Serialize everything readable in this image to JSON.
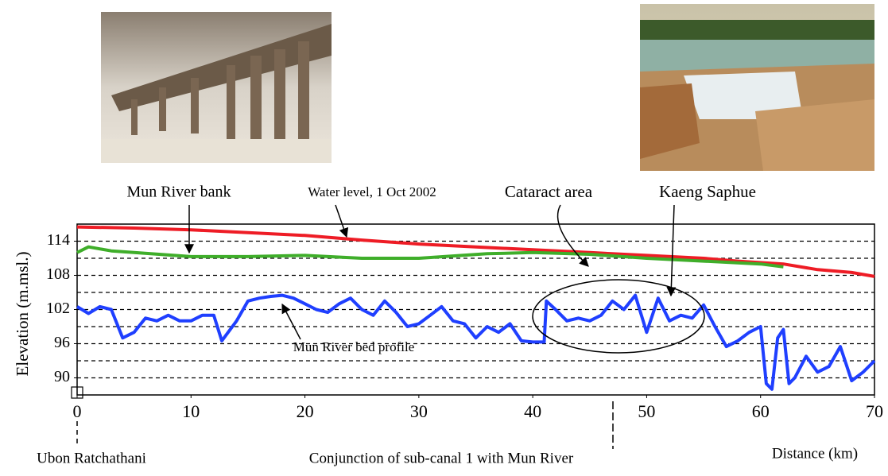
{
  "chart_data": {
    "type": "line",
    "ylabel": "Elevation (m.msl.)",
    "xlabel": "Distance (km)",
    "xlim": [
      0,
      70
    ],
    "xticks": [
      0,
      10,
      20,
      30,
      40,
      50,
      60,
      70
    ],
    "ylim": [
      87,
      117
    ],
    "yticks": [
      90,
      96,
      102,
      108,
      114
    ],
    "ygrid": [
      90,
      93,
      96,
      99,
      102,
      105,
      108,
      111,
      114
    ],
    "grid": true,
    "series": [
      {
        "name": "Water level, 1 Oct 2002",
        "color": "#ee1c25",
        "x": [
          0,
          5,
          10,
          15,
          20,
          25,
          30,
          35,
          40,
          45,
          50,
          55,
          58,
          62,
          65,
          68,
          70
        ],
        "values": [
          116.5,
          116.3,
          116,
          115.5,
          115,
          114.2,
          113.5,
          113,
          112.5,
          112,
          111.5,
          111,
          110.5,
          110,
          109,
          108.5,
          107.8
        ]
      },
      {
        "name": "Mun River bank",
        "color": "#3fae2a",
        "x": [
          0,
          1,
          3,
          5,
          10,
          15,
          20,
          25,
          30,
          36,
          40,
          45,
          50,
          55,
          60,
          62
        ],
        "values": [
          112,
          113,
          112.3,
          112,
          111.3,
          111.3,
          111.5,
          111,
          111,
          111.8,
          112,
          111.7,
          111,
          110.5,
          110,
          109.5
        ]
      },
      {
        "name": "Mun River bed profile",
        "color": "#1f3fff",
        "x": [
          0,
          1,
          2,
          3,
          4,
          5,
          6,
          7,
          8,
          9,
          10,
          11,
          12,
          12.7,
          14,
          15,
          16,
          17,
          18,
          19,
          20,
          21,
          22,
          23,
          24,
          25,
          26,
          27,
          28,
          29,
          30,
          31,
          32,
          33,
          34,
          35,
          36,
          37,
          38,
          39,
          40,
          41,
          41.2,
          42,
          43,
          44,
          45,
          46,
          47,
          48,
          49,
          50,
          51,
          52,
          53,
          54,
          55,
          56,
          57,
          58,
          59,
          60,
          60.5,
          61,
          61.5,
          62,
          62.5,
          63,
          64,
          65,
          66,
          67,
          68,
          69,
          70
        ],
        "values": [
          102.5,
          101.3,
          102.5,
          102,
          97,
          98,
          100.5,
          100,
          101,
          100,
          100,
          101,
          101,
          96.5,
          100,
          103.5,
          104,
          104.3,
          104.5,
          104,
          103,
          102,
          101.5,
          103,
          104,
          102,
          101,
          103.5,
          101.5,
          99,
          99.5,
          101,
          102.5,
          100,
          99.5,
          97,
          99,
          98,
          99.5,
          96.5,
          96.3,
          96.3,
          103.5,
          102,
          100,
          100.5,
          100,
          101,
          103.5,
          102,
          104.5,
          98,
          104,
          100,
          101,
          100.5,
          102.8,
          99,
          95.5,
          96.5,
          98,
          99,
          89,
          88,
          97,
          98.5,
          89,
          90,
          93.8,
          91,
          92,
          95.5,
          89.5,
          91,
          93
        ]
      }
    ],
    "annotations": [
      "Mun River bank",
      "Water level, 1 Oct 2002",
      "Cataract area",
      "Kaeng Saphue",
      "Mun River bed profile",
      "Ubon Ratchathani",
      "Conjunction of sub-canal 1 with Mun River"
    ]
  }
}
